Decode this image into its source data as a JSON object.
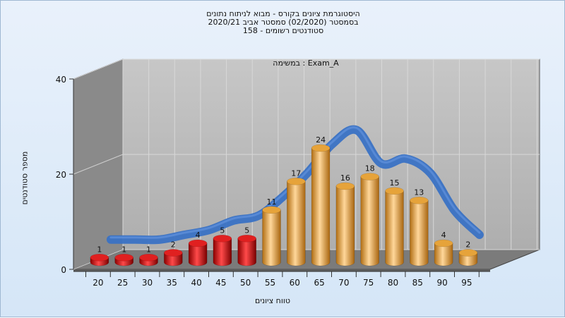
{
  "colors": {
    "low_bar": "#e02020",
    "high_bar": "#e6a33a",
    "curve": "#3a72c4",
    "wall": "#b9b9b9",
    "side_wall": "#8a8a8a",
    "floor": "#7b7b7b"
  },
  "chart_data": {
    "type": "bar",
    "title": [
      "היסטוגרמת ציונים בקורס - מבוא לניתוח נתונים",
      "בסמסטר  (02/2020)  סמסטר אביב 2020/21",
      "סטודנטים רשומים - 158"
    ],
    "annotation": "במשימה : Exam_A",
    "xlabel": "טווח ציונים",
    "ylabel": "מספר סטודנטים",
    "ylim": [
      0,
      40
    ],
    "yticks": [
      0,
      20,
      40
    ],
    "categories": [
      "20",
      "25",
      "30",
      "35",
      "40",
      "45",
      "50",
      "55",
      "60",
      "65",
      "70",
      "75",
      "80",
      "85",
      "90",
      "95"
    ],
    "values": [
      1,
      1,
      1,
      2,
      4,
      5,
      5,
      11,
      17,
      24,
      16,
      18,
      15,
      13,
      4,
      2
    ],
    "curve_values": [
      3,
      3,
      3,
      4,
      5,
      7,
      8,
      12,
      17,
      23,
      26,
      19,
      20,
      17,
      9,
      4
    ],
    "grid": true,
    "legend": "none",
    "bar_color_rule": "values for ranges below 55 in red, 55 and above in orange"
  }
}
